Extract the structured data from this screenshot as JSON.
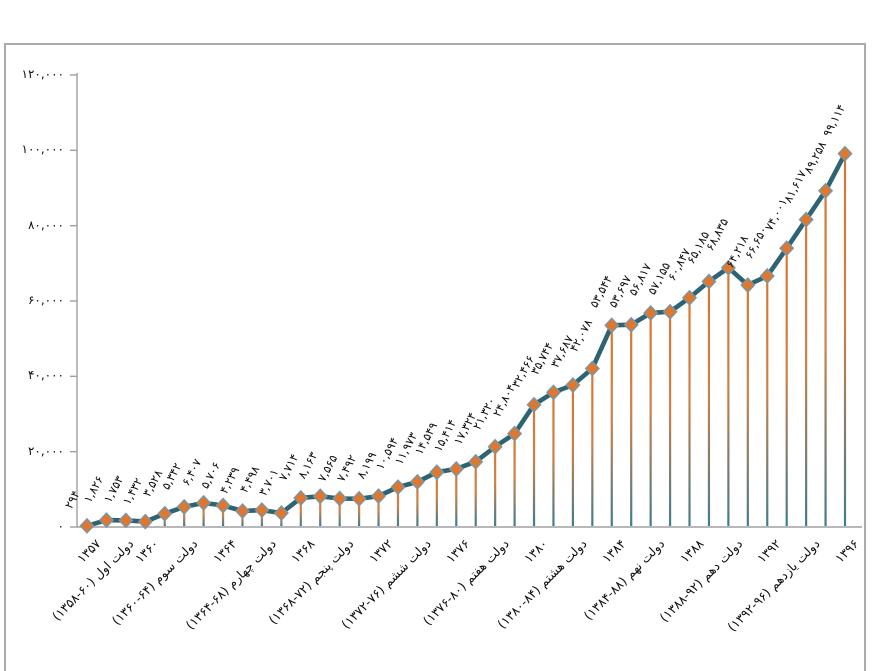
{
  "chart_data": {
    "type": "line",
    "title": "",
    "xlabel": "",
    "ylabel": "",
    "grid": false,
    "legend": null,
    "marker": "diamond",
    "ylim": [
      0,
      120000
    ],
    "y_ticks": [
      0,
      20000,
      40000,
      60000,
      80000,
      100000,
      120000
    ],
    "y_tick_labels": [
      "۰",
      "۲۰,۰۰۰",
      "۴۰,۰۰۰",
      "۶۰,۰۰۰",
      "۸۰,۰۰۰",
      "۱۰۰,۰۰۰",
      "۱۲۰,۰۰۰"
    ],
    "x_start_year": "۱۳۵۷",
    "x_end_year": "۱۳۹۶",
    "values": [
      294,
      1826,
      1753,
      1432,
      3528,
      5342,
      6407,
      5706,
      4239,
      4498,
      3701,
      7714,
      8163,
      7565,
      7492,
      8199,
      10594,
      11973,
      14549,
      15414,
      17324,
      21320,
      24804,
      32466,
      35744,
      37687,
      42078,
      53544,
      53697,
      56817,
      57155,
      60847,
      65185,
      68835,
      64218,
      66650,
      74001,
      81617,
      89258,
      99114
    ],
    "point_labels": [
      "۲۹۴",
      "۱,۸۲۶",
      "۱,۷۵۳",
      "۱,۴۳۲",
      "۳,۵۲۸",
      "۵,۳۴۲",
      "۶,۴۰۷",
      "۵,۷۰۶",
      "۴,۲۳۹",
      "۴,۴۹۸",
      "۳,۷۰۱",
      "۷,۷۱۴",
      "۸,۱۶۳",
      "۷,۵۶۵",
      "۷,۴۹۲",
      "۸,۱۹۹",
      "۱۰,۵۹۴",
      "۱۱,۹۷۳",
      "۱۴,۵۴۹",
      "۱۵,۴۱۴",
      "۱۷,۳۲۴",
      "۲۱,۳۲۰",
      "۲۴,۸۰۴",
      "۳۲,۴۶۶",
      "۳۵,۷۴۴",
      "۳۷,۶۸۷",
      "۴۲,۰۷۸",
      "۵۳,۵۴۴",
      "۵۳,۶۹۷",
      "۵۶,۸۱۷",
      "۵۷,۱۵۵",
      "۶۰,۸۴۷",
      "۶۵,۱۸۵",
      "۶۸,۸۳۵",
      "۶۴,۲۱۸",
      "۶۶,۶۵۰",
      "۷۴,۰۰۱",
      "۸۱,۶۱۷",
      "۸۹,۲۵۸",
      "۹۹,۱۱۴"
    ],
    "x_axis_labels": [
      {
        "pos": 0,
        "text": "۱۳۵۷"
      },
      {
        "pos": 1.7,
        "text": "دولت اول (۶۰-۱۳۵۸)"
      },
      {
        "pos": 3,
        "text": "۱۳۶۰"
      },
      {
        "pos": 5,
        "text": "دولت سوم (۶۴-۱۳۶۰)"
      },
      {
        "pos": 7,
        "text": "۱۳۶۴"
      },
      {
        "pos": 9,
        "text": "دولت چهارم (۶۸-۱۳۶۴)"
      },
      {
        "pos": 11,
        "text": "۱۳۶۸"
      },
      {
        "pos": 13,
        "text": "دولت پنجم (۷۲-۱۳۶۸)"
      },
      {
        "pos": 15,
        "text": "۱۳۷۲"
      },
      {
        "pos": 17,
        "text": "دولت ششم (۷۶-۱۳۷۲)"
      },
      {
        "pos": 19,
        "text": "۱۳۷۶"
      },
      {
        "pos": 21,
        "text": "دولت هفتم (۸۰-۱۳۷۶)"
      },
      {
        "pos": 23,
        "text": "۱۳۸۰"
      },
      {
        "pos": 25,
        "text": "دولت هشتم (۸۴-۱۳۸۰)"
      },
      {
        "pos": 27,
        "text": "۱۳۸۴"
      },
      {
        "pos": 29,
        "text": "دولت نهم (۸۸-۱۳۸۴)"
      },
      {
        "pos": 31,
        "text": "۱۳۸۸"
      },
      {
        "pos": 33,
        "text": "دولت دهم (۹۲-۱۳۸۸)"
      },
      {
        "pos": 35,
        "text": "۱۳۹۲"
      },
      {
        "pos": 37,
        "text": "دولت یازدهم (۹۶-۱۳۹۲)"
      },
      {
        "pos": 39,
        "text": "۱۳۹۶"
      }
    ],
    "colors": {
      "line": "#2d6372",
      "marker_fill": "#e0772e",
      "marker_stroke": "#7b96a2",
      "dropline_top": "#d8762f",
      "dropline_mid": "#ce8148",
      "dropline_bottom": "#3f7d8e",
      "axis": "#a0a0a0",
      "frame_border": "#ababab",
      "text": "#101010"
    }
  }
}
